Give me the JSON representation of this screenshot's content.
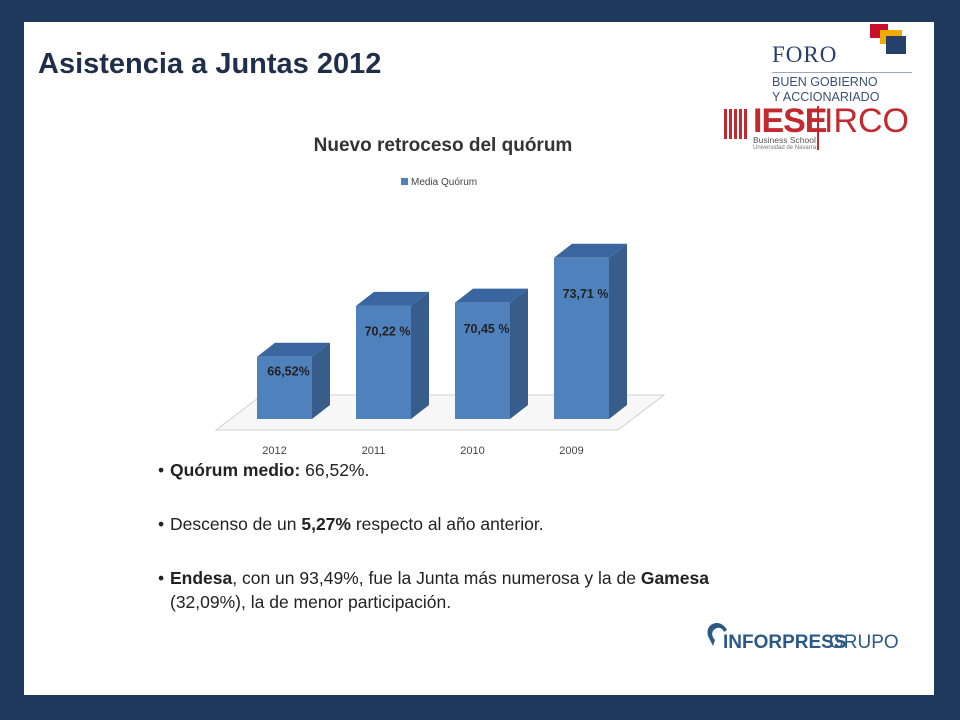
{
  "slide": {
    "title": "Asistencia a Juntas 2012"
  },
  "logos": {
    "foro": {
      "name": "FORO",
      "line1": "BUEN GOBIERNO",
      "line2": "Y ACCIONARIADO"
    },
    "iese": {
      "name": "IESE",
      "school": "Business School",
      "university": "Universidad de Navarra",
      "partner": "IRCO"
    },
    "inforpress": {
      "brand": "INFORPRESS",
      "suffix": "GRUPO"
    }
  },
  "chart_data": {
    "type": "bar",
    "title": "Nuevo retroceso del quórum",
    "categories": [
      "2012",
      "2011",
      "2010",
      "2009"
    ],
    "series": [
      {
        "name": "Media Quórum",
        "values": [
          66.52,
          70.22,
          70.45,
          73.71
        ]
      }
    ],
    "data_labels": [
      "66,52%",
      "70,22 %",
      "70,45 %",
      "73,71 %"
    ],
    "color": "#4f81bd",
    "legend_position": "top",
    "ylim": [
      62,
      75
    ],
    "grid": false
  },
  "bullets": [
    {
      "bold": "Quórum medio:",
      "text": " 66,52%."
    },
    {
      "pre": "Descenso de un ",
      "bold": "5,27%",
      "post": " respecto al año anterior."
    },
    {
      "bold": "Endesa",
      "mid": ", con un 93,49%, fue la Junta más numerosa y la de ",
      "bold2": "Gamesa",
      "post": " (32,09%), la de menor participación."
    }
  ]
}
